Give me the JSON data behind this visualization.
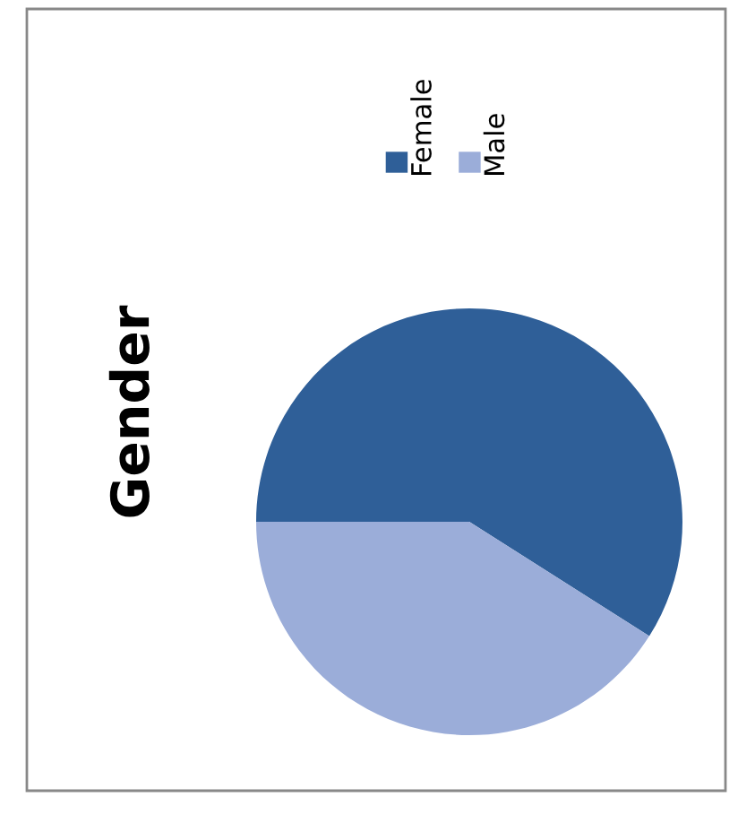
{
  "chart_data": {
    "type": "pie",
    "title": "Gender",
    "categories": [
      "Female",
      "Male"
    ],
    "values": [
      59,
      41
    ],
    "colors": [
      "#2f5f98",
      "#9badd9"
    ],
    "legend": "top"
  }
}
